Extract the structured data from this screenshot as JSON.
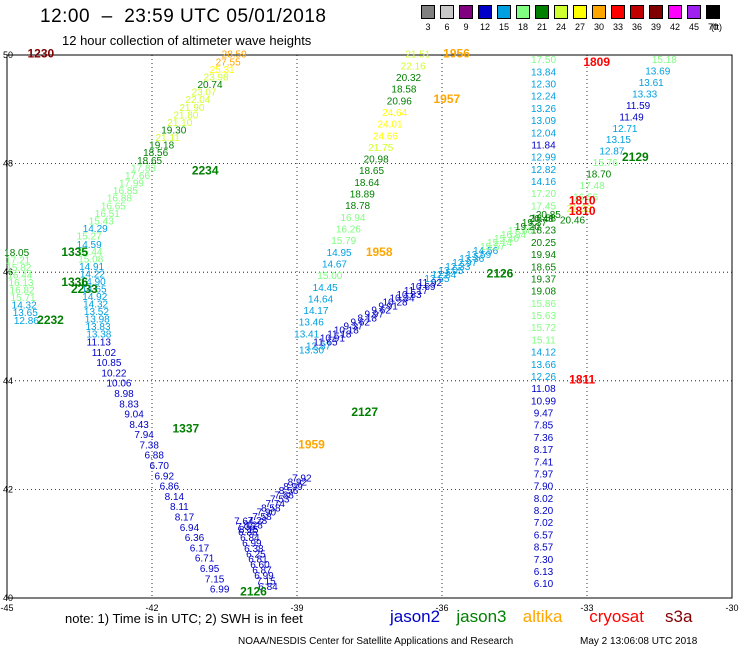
{
  "title": "12:00  –  23:59 UTC 05/01/2018",
  "subtitle": "12 hour collection of altimeter wave heights",
  "legend": {
    "unit": "(ft)",
    "bins": [
      {
        "label": "3",
        "color": "#808080"
      },
      {
        "label": "6",
        "color": "#c8c8c8"
      },
      {
        "label": "9",
        "color": "#800080"
      },
      {
        "label": "12",
        "color": "#0000c8"
      },
      {
        "label": "15",
        "color": "#00a0e0"
      },
      {
        "label": "18",
        "color": "#80ff80"
      },
      {
        "label": "21",
        "color": "#008000"
      },
      {
        "label": "24",
        "color": "#d0ff30"
      },
      {
        "label": "27",
        "color": "#ffff00"
      },
      {
        "label": "30",
        "color": "#ffa500"
      },
      {
        "label": "33",
        "color": "#ff0000"
      },
      {
        "label": "36",
        "color": "#c00000"
      },
      {
        "label": "39",
        "color": "#800000"
      },
      {
        "label": "42",
        "color": "#ff00ff"
      },
      {
        "label": "45",
        "color": "#a020f0"
      },
      {
        "label": "70",
        "color": "#000000"
      }
    ]
  },
  "axes": {
    "lon_ticks": [
      "-45",
      "-42",
      "-39",
      "-36",
      "-33",
      "-30"
    ],
    "lat_ticks": [
      "50",
      "48",
      "46",
      "44",
      "42",
      "40"
    ]
  },
  "colors": {
    "swh_9_12": "#0000c8",
    "swh_12_15": "#00a0e0",
    "swh_15_18": "#80ff80",
    "swh_18_21": "#008000",
    "swh_21_24": "#d0ff30",
    "swh_24_27": "#ffff00",
    "swh_27_30": "#ffa500",
    "time_label": "#008000"
  },
  "time_labels": [
    {
      "text": "1230",
      "lon": -44.3,
      "lat": 49.95,
      "color": "#800000"
    },
    {
      "text": "1956",
      "lon": -35.7,
      "lat": 49.95,
      "color": "#ffa500"
    },
    {
      "text": "1809",
      "lon": -32.8,
      "lat": 49.8,
      "color": "#ff0000"
    },
    {
      "text": "1957",
      "lon": -35.9,
      "lat": 49.12,
      "color": "#ffa500"
    },
    {
      "text": "2129",
      "lon": -32.0,
      "lat": 48.05,
      "color": "#008000"
    },
    {
      "text": "2234",
      "lon": -40.9,
      "lat": 47.8,
      "color": "#008000"
    },
    {
      "text": "1810",
      "lon": -33.1,
      "lat": 47.25,
      "color": "#ff0000"
    },
    {
      "text": "1810",
      "lon": -33.1,
      "lat": 47.05,
      "color": "#ff0000"
    },
    {
      "text": "1335",
      "lon": -43.6,
      "lat": 46.3,
      "color": "#008000"
    },
    {
      "text": "1958",
      "lon": -37.3,
      "lat": 46.3,
      "color": "#ffa500"
    },
    {
      "text": "1336",
      "lon": -43.6,
      "lat": 45.75,
      "color": "#008000"
    },
    {
      "text": "2233",
      "lon": -43.4,
      "lat": 45.62,
      "color": "#008000"
    },
    {
      "text": "2126",
      "lon": -34.8,
      "lat": 45.9,
      "color": "#008000"
    },
    {
      "text": "2232",
      "lon": -44.1,
      "lat": 45.05,
      "color": "#008000"
    },
    {
      "text": "1811",
      "lon": -33.1,
      "lat": 43.95,
      "color": "#ff0000"
    },
    {
      "text": "2127",
      "lon": -37.6,
      "lat": 43.35,
      "color": "#008000"
    },
    {
      "text": "1337",
      "lon": -41.3,
      "lat": 43.05,
      "color": "#008000"
    },
    {
      "text": "1959",
      "lon": -38.7,
      "lat": 42.75,
      "color": "#ffa500"
    },
    {
      "text": "2126",
      "lon": -39.9,
      "lat": 40.05,
      "color": "#008000"
    }
  ],
  "tracks": [
    {
      "name": "track-a",
      "values": [
        "28.59",
        "27.55",
        "25.31",
        "23.98",
        "20.74",
        "23.07",
        "22.04",
        "21.90",
        "21.80",
        "21.10",
        "19.30",
        "21.11",
        "19.18",
        "18.56",
        "18.65",
        "17.83",
        "17.66",
        "17.99",
        "16.85",
        "16.88",
        "16.65",
        "16.51",
        "15.43",
        "14.29",
        "15.27"
      ],
      "lon_start": -40.3,
      "lat_start": 49.95,
      "lon_end": -43.3,
      "lat_end": 46.6
    },
    {
      "name": "track-b",
      "values": [
        "14.59",
        "15.44",
        "15.08",
        "14.91",
        "14.22",
        "14.90",
        "14.65",
        "14.92",
        "14.32",
        "13.52",
        "13.98",
        "13.83",
        "13.38"
      ],
      "lon_start": -43.3,
      "lat_start": 46.45,
      "lon_end": -43.1,
      "lat_end": 44.8
    },
    {
      "name": "track-b2",
      "values": [
        "18.05",
        "17.21",
        "15.82",
        "16.44",
        "16.13",
        "16.82",
        "15.71",
        "14.32",
        "13.65",
        "12.86"
      ],
      "lon_start": -44.8,
      "lat_start": 46.3,
      "lon_end": -44.6,
      "lat_end": 45.05
    },
    {
      "name": "track-c",
      "values": [
        "11.13",
        "11.02",
        "10.85",
        "10.22",
        "10.06",
        "8.98",
        "8.83",
        "9.04",
        "8.43",
        "7.94",
        "7.38",
        "6.88",
        "6.70",
        "6.92",
        "6.86",
        "8.14",
        "8.11",
        "8.17",
        "6.94",
        "6.36",
        "6.17",
        "6.71",
        "6.95",
        "7.15",
        "6.99"
      ],
      "lon_start": -43.1,
      "lat_start": 44.65,
      "lon_end": -40.6,
      "lat_end": 40.1
    },
    {
      "name": "track-d",
      "values": [
        "7.64",
        "7.36",
        "6.86",
        "6.84",
        "6.99",
        "6.38",
        "6.25",
        "6.81",
        "6.60",
        "6.87",
        "6.99",
        "7.15",
        "6.84"
      ],
      "lon_start": -40.1,
      "lat_start": 41.35,
      "lon_end": -39.6,
      "lat_end": 40.15
    },
    {
      "name": "track-e",
      "values": [
        "7.92",
        "8.92",
        "8.99",
        "8.56",
        "7.88",
        "7.53",
        "7.74",
        "8.58",
        "7.90",
        "7.58",
        "7.28",
        "8.28",
        "8.15"
      ],
      "lon_start": -38.9,
      "lat_start": 42.15,
      "lon_end": -40.0,
      "lat_end": 41.2
    },
    {
      "name": "track-f",
      "values": [
        "13.30",
        "12.37",
        "11.65",
        "10.91",
        "11.18",
        "10.18",
        "9.37",
        "9.62",
        "8.18",
        "9.97",
        "9.62",
        "9.91",
        "10.28",
        "10.34",
        "10.83",
        "11.17",
        "10.69",
        "11.92",
        "12.55",
        "12.84",
        "13.05",
        "12.33",
        "12.97",
        "13.36",
        "13.59",
        "14.56",
        "15.57",
        "15.14",
        "15.40",
        "16.84",
        "17.60",
        "19.20",
        "19.37",
        "20.48",
        "20.85"
      ],
      "lon_start": -38.7,
      "lat_start": 44.5,
      "lon_end": -33.8,
      "lat_end": 47.0
    },
    {
      "name": "track-g",
      "values": [
        "21.51",
        "22.16",
        "20.32",
        "18.58",
        "20.96",
        "24.64",
        "24.01",
        "24.66",
        "21.75",
        "20.98",
        "18.65",
        "18.64",
        "18.89",
        "18.78",
        "16.94",
        "16.26",
        "15.79",
        "14.95",
        "14.67",
        "15.00",
        "14.45",
        "14.64",
        "14.17",
        "13.46",
        "13.41"
      ],
      "lon_start": -36.5,
      "lat_start": 49.95,
      "lon_end": -38.8,
      "lat_end": 44.8
    },
    {
      "name": "track-h",
      "values": [
        "17.50",
        "13.84",
        "12.30",
        "12.24",
        "13.26",
        "13.09",
        "12.04",
        "11.84",
        "12.99",
        "12.82",
        "14.16",
        "17.20",
        "17.45",
        "18.58",
        "18.23",
        "20.25",
        "19.94",
        "18.65",
        "19.37",
        "19.08",
        "15.86",
        "15.63",
        "15.72",
        "15.11",
        "14.12",
        "13.66",
        "12.26",
        "11.08",
        "10.99",
        "9.47",
        "7.85",
        "7.36",
        "8.17",
        "7.41",
        "7.97",
        "7.90",
        "8.02",
        "8.20",
        "7.02",
        "6.57",
        "8.57",
        "7.30",
        "6.13",
        "6.10"
      ],
      "lon_start": -33.9,
      "lat_start": 49.85,
      "lon_end": -33.9,
      "lat_end": 40.2
    },
    {
      "name": "track-i",
      "values": [
        "15.18",
        "13.69",
        "13.61",
        "13.33",
        "11.59",
        "11.49",
        "12.71",
        "13.15",
        "12.87",
        "15.76",
        "18.70",
        "17.48",
        "16.56",
        "21.03",
        "20.46"
      ],
      "lon_start": -31.4,
      "lat_start": 49.85,
      "lon_end": -33.3,
      "lat_end": 46.9
    }
  ],
  "note": "note:  1) Time is in UTC;  2) SWH is in feet",
  "satellites": [
    {
      "name": "jason2",
      "color": "#0000c8"
    },
    {
      "name": "jason3",
      "color": "#008000"
    },
    {
      "name": "altika",
      "color": "#ffa500"
    },
    {
      "name": "cryosat",
      "color": "#ff0000"
    },
    {
      "name": "s3a",
      "color": "#800000"
    }
  ],
  "credit": "NOAA/NESDIS Center for Satellite Applications and Research",
  "timestamp": "May  2 13:06:08 UTC 2018"
}
